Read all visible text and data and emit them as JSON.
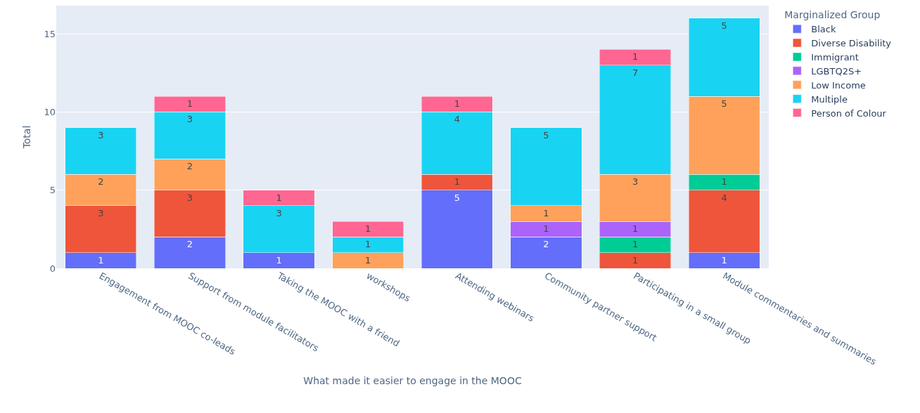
{
  "chart_data": {
    "type": "bar",
    "stacked": true,
    "xlabel": "What made it easier to engage in the MOOC",
    "ylabel": "Total",
    "legend_title": "Marginalized Group",
    "legend": "top right",
    "grid": "y",
    "data_labels": true,
    "ylim": [
      0,
      16.8
    ],
    "yticks": [
      0,
      5,
      10,
      15
    ],
    "categories": [
      "Engagement from MOOC co-leads",
      "Support from module facilitators",
      "Taking the MOOC with a friend",
      "workshops",
      "Attending webinars",
      "Community partner support",
      "Participating in a small group",
      "Module commentaries and summaries"
    ],
    "series": [
      {
        "name": "Black",
        "color": "#636efa",
        "values": [
          1,
          2,
          1,
          null,
          5,
          2,
          null,
          1
        ]
      },
      {
        "name": "Diverse Disability",
        "color": "#ef553b",
        "values": [
          3,
          3,
          null,
          null,
          1,
          null,
          1,
          4
        ]
      },
      {
        "name": "Immigrant",
        "color": "#00cc96",
        "values": [
          null,
          null,
          null,
          null,
          null,
          null,
          1,
          1
        ]
      },
      {
        "name": "LGBTQ2S+",
        "color": "#ab63fa",
        "values": [
          null,
          null,
          null,
          null,
          null,
          1,
          1,
          null
        ]
      },
      {
        "name": "Low Income",
        "color": "#ffa15a",
        "values": [
          2,
          2,
          null,
          1,
          null,
          1,
          3,
          5
        ]
      },
      {
        "name": "Multiple",
        "color": "#19d3f3",
        "values": [
          3,
          3,
          3,
          1,
          4,
          5,
          7,
          5
        ]
      },
      {
        "name": "Person of Colour",
        "color": "#ff6692",
        "values": [
          null,
          1,
          1,
          1,
          1,
          null,
          1,
          null
        ]
      }
    ]
  }
}
